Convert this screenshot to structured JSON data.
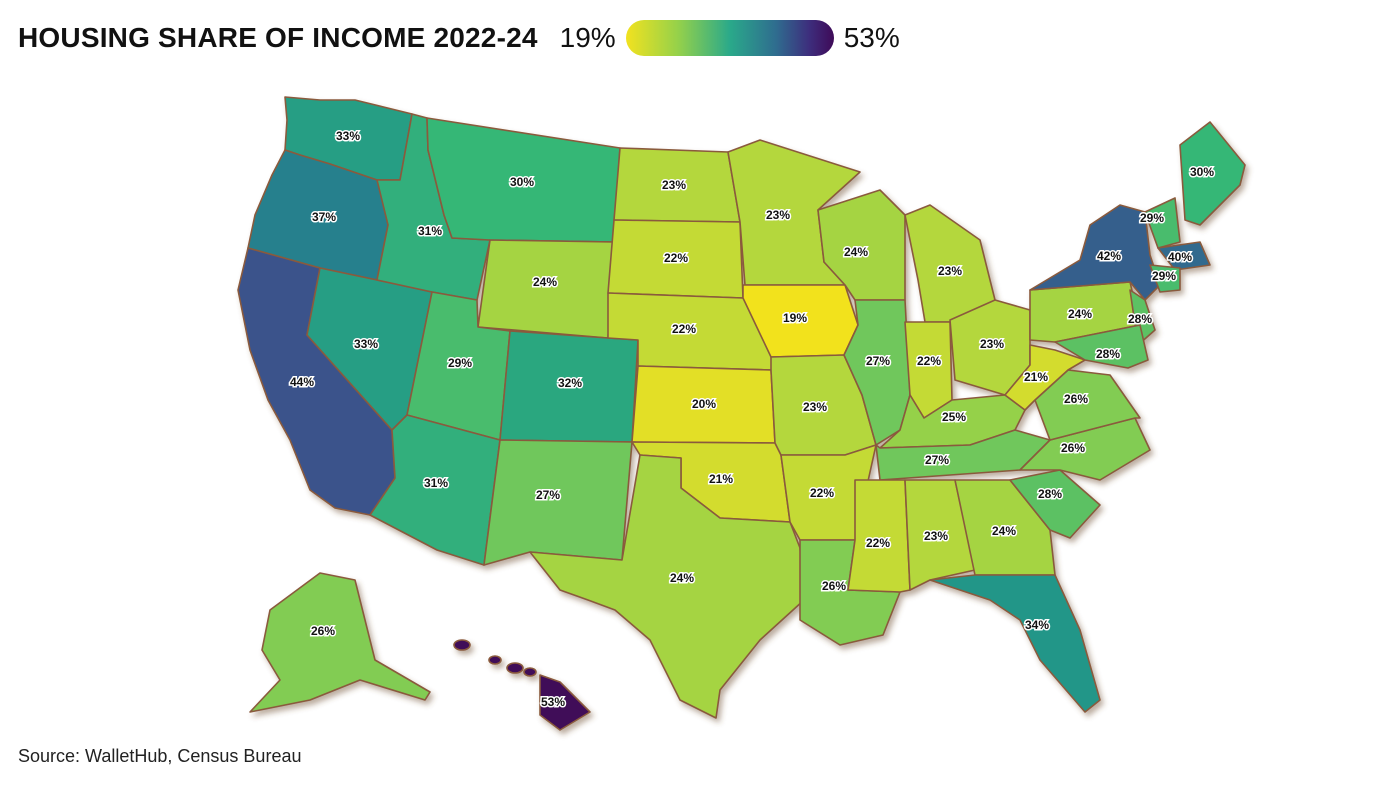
{
  "title": "HOUSING SHARE OF INCOME 2022-24",
  "legend": {
    "min_label": "19%",
    "max_label": "53%",
    "min": 19,
    "max": 53
  },
  "source": "Source: WalletHub, Census Bureau",
  "states": [
    {
      "id": "WA",
      "label": "33%",
      "value": 33
    },
    {
      "id": "OR",
      "label": "37%",
      "value": 37
    },
    {
      "id": "CA",
      "label": "44%",
      "value": 44
    },
    {
      "id": "NV",
      "label": "33%",
      "value": 33
    },
    {
      "id": "ID",
      "label": "31%",
      "value": 31
    },
    {
      "id": "MT",
      "label": "30%",
      "value": 30
    },
    {
      "id": "WY",
      "label": "24%",
      "value": 24
    },
    {
      "id": "UT",
      "label": "29%",
      "value": 29
    },
    {
      "id": "CO",
      "label": "32%",
      "value": 32
    },
    {
      "id": "AZ",
      "label": "31%",
      "value": 31
    },
    {
      "id": "NM",
      "label": "27%",
      "value": 27
    },
    {
      "id": "ND",
      "label": "23%",
      "value": 23
    },
    {
      "id": "SD",
      "label": "22%",
      "value": 22
    },
    {
      "id": "NE",
      "label": "22%",
      "value": 22
    },
    {
      "id": "KS",
      "label": "20%",
      "value": 20
    },
    {
      "id": "OK",
      "label": "21%",
      "value": 21
    },
    {
      "id": "TX",
      "label": "24%",
      "value": 24
    },
    {
      "id": "MN",
      "label": "23%",
      "value": 23
    },
    {
      "id": "IA",
      "label": "19%",
      "value": 19
    },
    {
      "id": "MO",
      "label": "23%",
      "value": 23
    },
    {
      "id": "AR",
      "label": "22%",
      "value": 22
    },
    {
      "id": "LA",
      "label": "26%",
      "value": 26
    },
    {
      "id": "WI",
      "label": "24%",
      "value": 24
    },
    {
      "id": "IL",
      "label": "27%",
      "value": 27
    },
    {
      "id": "MI",
      "label": "23%",
      "value": 23
    },
    {
      "id": "IN",
      "label": "22%",
      "value": 22
    },
    {
      "id": "OH",
      "label": "23%",
      "value": 23
    },
    {
      "id": "KY",
      "label": "25%",
      "value": 25
    },
    {
      "id": "TN",
      "label": "27%",
      "value": 27
    },
    {
      "id": "MS",
      "label": "22%",
      "value": 22
    },
    {
      "id": "AL",
      "label": "23%",
      "value": 23
    },
    {
      "id": "GA",
      "label": "24%",
      "value": 24
    },
    {
      "id": "FL",
      "label": "34%",
      "value": 34
    },
    {
      "id": "SC",
      "label": "28%",
      "value": 28
    },
    {
      "id": "NC",
      "label": "26%",
      "value": 26
    },
    {
      "id": "VA",
      "label": "26%",
      "value": 26
    },
    {
      "id": "WV",
      "label": "21%",
      "value": 21
    },
    {
      "id": "PA",
      "label": "24%",
      "value": 24
    },
    {
      "id": "NY",
      "label": "42%",
      "value": 42
    },
    {
      "id": "NJ",
      "label": "28%",
      "value": 28
    },
    {
      "id": "MD",
      "label": "28%",
      "value": 28
    },
    {
      "id": "VT",
      "label": "29%",
      "value": 29
    },
    {
      "id": "ME",
      "label": "30%",
      "value": 30
    },
    {
      "id": "MA",
      "label": "40%",
      "value": 40
    },
    {
      "id": "CT",
      "label": "29%",
      "value": 29
    },
    {
      "id": "AK",
      "label": "26%",
      "value": 26
    },
    {
      "id": "HI",
      "label": "53%",
      "value": 53
    }
  ]
}
